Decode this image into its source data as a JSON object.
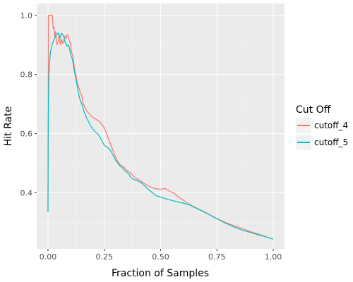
{
  "chart_data": {
    "type": "line",
    "xlabel": "Fraction of Samples",
    "ylabel": "Hit Rate",
    "xlim": [
      -0.05,
      1.05
    ],
    "ylim": [
      0.21,
      1.04
    ],
    "x_ticks": [
      0.0,
      0.25,
      0.5,
      0.75,
      1.0
    ],
    "x_tick_labels": [
      "0.00",
      "0.25",
      "0.50",
      "0.75",
      "1.00"
    ],
    "y_ticks": [
      0.4,
      0.6,
      0.8,
      1.0
    ],
    "y_tick_labels": [
      "0.4",
      "0.6",
      "0.8",
      "1.0"
    ],
    "grid": true,
    "legend": {
      "title": "Cut Off",
      "position": "right"
    },
    "series": [
      {
        "name": "cutoff_4",
        "color": "#F8766D",
        "points": [
          [
            0.0,
            0.335
          ],
          [
            0.0008,
            0.52
          ],
          [
            0.0015,
            1.0
          ],
          [
            0.01,
            1.0
          ],
          [
            0.02,
            1.0
          ],
          [
            0.023,
            0.955
          ],
          [
            0.027,
            0.96
          ],
          [
            0.03,
            0.925
          ],
          [
            0.034,
            0.945
          ],
          [
            0.04,
            0.9
          ],
          [
            0.045,
            0.91
          ],
          [
            0.05,
            0.935
          ],
          [
            0.055,
            0.9
          ],
          [
            0.06,
            0.92
          ],
          [
            0.065,
            0.905
          ],
          [
            0.07,
            0.915
          ],
          [
            0.075,
            0.93
          ],
          [
            0.08,
            0.92
          ],
          [
            0.085,
            0.935
          ],
          [
            0.09,
            0.93
          ],
          [
            0.095,
            0.915
          ],
          [
            0.1,
            0.905
          ],
          [
            0.105,
            0.875
          ],
          [
            0.11,
            0.865
          ],
          [
            0.115,
            0.835
          ],
          [
            0.12,
            0.81
          ],
          [
            0.125,
            0.795
          ],
          [
            0.13,
            0.77
          ],
          [
            0.135,
            0.76
          ],
          [
            0.14,
            0.75
          ],
          [
            0.145,
            0.735
          ],
          [
            0.15,
            0.73
          ],
          [
            0.155,
            0.705
          ],
          [
            0.16,
            0.695
          ],
          [
            0.17,
            0.68
          ],
          [
            0.18,
            0.67
          ],
          [
            0.19,
            0.66
          ],
          [
            0.2,
            0.655
          ],
          [
            0.21,
            0.65
          ],
          [
            0.22,
            0.645
          ],
          [
            0.23,
            0.64
          ],
          [
            0.24,
            0.63
          ],
          [
            0.25,
            0.62
          ],
          [
            0.26,
            0.6
          ],
          [
            0.27,
            0.58
          ],
          [
            0.28,
            0.56
          ],
          [
            0.29,
            0.54
          ],
          [
            0.3,
            0.52
          ],
          [
            0.31,
            0.505
          ],
          [
            0.32,
            0.495
          ],
          [
            0.33,
            0.49
          ],
          [
            0.34,
            0.485
          ],
          [
            0.35,
            0.475
          ],
          [
            0.36,
            0.47
          ],
          [
            0.37,
            0.465
          ],
          [
            0.38,
            0.455
          ],
          [
            0.39,
            0.45
          ],
          [
            0.4,
            0.445
          ],
          [
            0.42,
            0.435
          ],
          [
            0.44,
            0.425
          ],
          [
            0.46,
            0.418
          ],
          [
            0.48,
            0.413
          ],
          [
            0.5,
            0.412
          ],
          [
            0.52,
            0.414
          ],
          [
            0.54,
            0.405
          ],
          [
            0.56,
            0.398
          ],
          [
            0.58,
            0.385
          ],
          [
            0.6,
            0.375
          ],
          [
            0.63,
            0.36
          ],
          [
            0.66,
            0.348
          ],
          [
            0.7,
            0.333
          ],
          [
            0.74,
            0.316
          ],
          [
            0.78,
            0.302
          ],
          [
            0.82,
            0.29
          ],
          [
            0.86,
            0.279
          ],
          [
            0.9,
            0.268
          ],
          [
            0.94,
            0.258
          ],
          [
            0.97,
            0.25
          ],
          [
            1.0,
            0.243
          ]
        ]
      },
      {
        "name": "cutoff_5",
        "color": "#00BFC4",
        "points": [
          [
            0.0,
            0.335
          ],
          [
            0.0008,
            0.6
          ],
          [
            0.002,
            0.7
          ],
          [
            0.004,
            0.8
          ],
          [
            0.008,
            0.85
          ],
          [
            0.012,
            0.88
          ],
          [
            0.018,
            0.9
          ],
          [
            0.025,
            0.915
          ],
          [
            0.032,
            0.925
          ],
          [
            0.038,
            0.935
          ],
          [
            0.045,
            0.94
          ],
          [
            0.05,
            0.93
          ],
          [
            0.055,
            0.925
          ],
          [
            0.06,
            0.94
          ],
          [
            0.065,
            0.935
          ],
          [
            0.07,
            0.93
          ],
          [
            0.075,
            0.91
          ],
          [
            0.08,
            0.905
          ],
          [
            0.085,
            0.895
          ],
          [
            0.09,
            0.9
          ],
          [
            0.095,
            0.89
          ],
          [
            0.1,
            0.87
          ],
          [
            0.105,
            0.86
          ],
          [
            0.11,
            0.845
          ],
          [
            0.115,
            0.82
          ],
          [
            0.12,
            0.8
          ],
          [
            0.125,
            0.78
          ],
          [
            0.13,
            0.76
          ],
          [
            0.135,
            0.74
          ],
          [
            0.14,
            0.72
          ],
          [
            0.145,
            0.71
          ],
          [
            0.15,
            0.7
          ],
          [
            0.155,
            0.69
          ],
          [
            0.16,
            0.675
          ],
          [
            0.17,
            0.655
          ],
          [
            0.18,
            0.64
          ],
          [
            0.19,
            0.625
          ],
          [
            0.2,
            0.615
          ],
          [
            0.21,
            0.605
          ],
          [
            0.22,
            0.6
          ],
          [
            0.23,
            0.59
          ],
          [
            0.24,
            0.575
          ],
          [
            0.25,
            0.56
          ],
          [
            0.26,
            0.555
          ],
          [
            0.27,
            0.55
          ],
          [
            0.28,
            0.54
          ],
          [
            0.29,
            0.525
          ],
          [
            0.3,
            0.51
          ],
          [
            0.31,
            0.5
          ],
          [
            0.32,
            0.49
          ],
          [
            0.33,
            0.485
          ],
          [
            0.34,
            0.475
          ],
          [
            0.35,
            0.47
          ],
          [
            0.36,
            0.462
          ],
          [
            0.37,
            0.45
          ],
          [
            0.38,
            0.445
          ],
          [
            0.39,
            0.443
          ],
          [
            0.4,
            0.44
          ],
          [
            0.42,
            0.43
          ],
          [
            0.44,
            0.415
          ],
          [
            0.46,
            0.402
          ],
          [
            0.48,
            0.39
          ],
          [
            0.5,
            0.385
          ],
          [
            0.52,
            0.38
          ],
          [
            0.54,
            0.376
          ],
          [
            0.56,
            0.372
          ],
          [
            0.58,
            0.368
          ],
          [
            0.6,
            0.365
          ],
          [
            0.63,
            0.358
          ],
          [
            0.66,
            0.347
          ],
          [
            0.7,
            0.332
          ],
          [
            0.74,
            0.316
          ],
          [
            0.78,
            0.3
          ],
          [
            0.82,
            0.286
          ],
          [
            0.86,
            0.274
          ],
          [
            0.9,
            0.265
          ],
          [
            0.94,
            0.256
          ],
          [
            0.97,
            0.25
          ],
          [
            1.0,
            0.243
          ]
        ]
      }
    ]
  }
}
